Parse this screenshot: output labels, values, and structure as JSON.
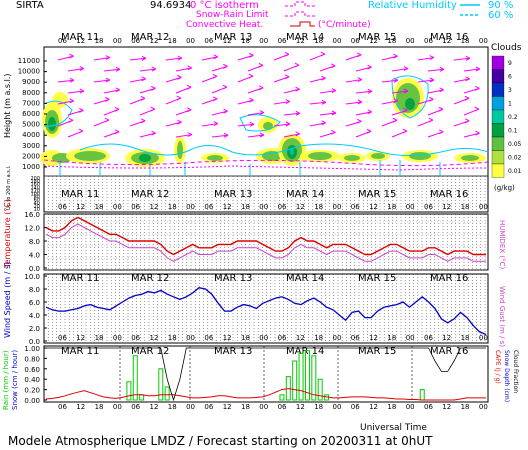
{
  "header": {
    "site": "SIRTA",
    "coords": "94.6934",
    "legend_isotherm": "0 °C isotherm",
    "legend_snow": "Snow-Rain Limit",
    "legend_conv": "Convective Heat.",
    "legend_conv_unit": "(°C/minute)",
    "legend_rh": "Relative Humidity",
    "rh_90": "90 %",
    "rh_60": "60 %"
  },
  "footer": {
    "title": "Modele Atmospherique LMDZ / Forecast starting on 20200311 at 0hUT"
  },
  "xaxis": {
    "days": [
      "MAR 11",
      "MAR 12",
      "MAR 13",
      "MAR 14",
      "MAR 15",
      "MAR 16"
    ],
    "hours": [
      "06",
      "12",
      "18",
      "00"
    ],
    "xlabel": "Universal Time"
  },
  "colors": {
    "temp": "#dd0000",
    "humidex": "#cc44cc",
    "wind": "#0000cc",
    "gust": "#cc44cc",
    "rain": "#00cc00",
    "snow": "#0000cc",
    "cape": "#dd0000",
    "cloud_frac": "#000000",
    "arrows": "#ff00ff",
    "rh": "#00ccff"
  },
  "chart_data": [
    {
      "type": "heatmap",
      "id": "cloud_panel",
      "ylabel": "Height (m a.s.l.)",
      "ylabel_lower": "Up to 200 m a.s.l.",
      "yticks_upper": [
        "11000",
        "10000",
        "9000",
        "8000",
        "7000",
        "6000",
        "5000",
        "4000",
        "3000",
        "2000",
        "1000"
      ],
      "yticks_lower": [
        "200",
        "180",
        "160",
        "140",
        "120",
        "100",
        "80",
        "60",
        "40",
        "20",
        "10"
      ],
      "colorbar_title": "Clouds",
      "colorbar_labels": [
        "9",
        "6",
        "3",
        "1",
        "0.2",
        "0.1",
        "0.05",
        "0.02",
        "0.01"
      ],
      "colorbar_colors": [
        "#a000e0",
        "#4400a0",
        "#0030c0",
        "#00a0e0",
        "#00c8a0",
        "#00a040",
        "#60c040",
        "#b0e040",
        "#ffff40"
      ],
      "colorbar_unit": "(g/kg)"
    },
    {
      "type": "line",
      "id": "temperature",
      "ylabel": "Temperature (°C)",
      "ylabel_right": "HUMIDEX (°C)",
      "yticks": [
        "16.0",
        "12.0",
        "8.0",
        "4.0",
        "0.0"
      ],
      "ylim": [
        0,
        16
      ],
      "series": [
        {
          "name": "Temperature",
          "values": [
            12,
            11,
            11,
            12,
            14,
            15,
            14,
            13,
            12,
            11,
            10,
            10,
            9,
            8,
            8,
            8,
            8,
            8,
            7,
            5,
            4,
            5,
            6,
            7,
            6,
            6,
            6,
            7,
            7,
            7,
            8,
            8,
            8,
            8,
            7,
            6,
            5,
            5,
            6,
            8,
            9,
            8,
            8,
            7,
            6,
            7,
            7,
            7,
            6,
            5,
            4,
            4,
            5,
            6,
            7,
            7,
            6,
            5,
            5,
            5,
            6,
            6,
            5,
            4,
            5,
            5,
            5,
            4,
            4,
            4
          ]
        },
        {
          "name": "HUMIDEX",
          "values": [
            10,
            9,
            9,
            10,
            12,
            13,
            12,
            11,
            10,
            9,
            8,
            8,
            7,
            6,
            6,
            6,
            6,
            6,
            5,
            3,
            2,
            3,
            4,
            5,
            4,
            4,
            4,
            5,
            5,
            5,
            6,
            6,
            6,
            6,
            5,
            4,
            3,
            3,
            4,
            6,
            7,
            6,
            6,
            5,
            4,
            5,
            5,
            5,
            4,
            3,
            2,
            2,
            3,
            4,
            5,
            5,
            4,
            3,
            3,
            3,
            4,
            4,
            3,
            2,
            3,
            3,
            3,
            2,
            2,
            2
          ]
        }
      ]
    },
    {
      "type": "line",
      "id": "wind",
      "ylabel": "Wind Speed (m / s)",
      "ylabel_right": "Wind Gust (m / s)",
      "yticks": [
        "10.0",
        "8.0",
        "6.0",
        "4.0",
        "2.0",
        "0.0"
      ],
      "ylim": [
        0,
        10
      ],
      "series": [
        {
          "name": "Wind Speed",
          "values": [
            5.2,
            4.8,
            4.6,
            4.6,
            4.8,
            5.0,
            5.4,
            5.6,
            5.2,
            5.0,
            4.8,
            5.4,
            6.0,
            6.6,
            7.0,
            7.2,
            7.6,
            7.4,
            7.8,
            7.2,
            6.8,
            6.4,
            6.8,
            7.4,
            8.2,
            8.0,
            7.2,
            5.8,
            4.6,
            4.6,
            5.2,
            5.6,
            5.4,
            5.0,
            5.8,
            6.2,
            6.6,
            6.8,
            6.4,
            5.8,
            5.6,
            6.2,
            6.6,
            6.0,
            5.2,
            4.8,
            4.0,
            3.2,
            4.4,
            4.6,
            3.6,
            3.6,
            4.6,
            5.2,
            5.4,
            5.6,
            6.0,
            5.2,
            6.0,
            6.8,
            6.0,
            5.0,
            3.4,
            2.8,
            3.4,
            4.4,
            3.6,
            2.4,
            1.4,
            1.0
          ]
        }
      ]
    },
    {
      "type": "bar",
      "id": "precip",
      "ylabel_left": "Rain (mm / hour)",
      "ylabel_left2": "Snow (cm / hour)",
      "ylabel_right": "CAPE (J / g)",
      "ylabel_right2": "Snow Depth (cm)",
      "ylabel_right3": "Cloud Fraction",
      "yticks": [
        "1.00",
        "0.80",
        "0.60",
        "0.40",
        "0.20",
        "0.00"
      ],
      "ylim": [
        0,
        1
      ],
      "series": [
        {
          "name": "Rain",
          "values": [
            0,
            0,
            0,
            0,
            0,
            0,
            0,
            0,
            0,
            0,
            0,
            0,
            0,
            0.35,
            0.85,
            0.1,
            0,
            0,
            0.6,
            0.25,
            0,
            0,
            0,
            0,
            0,
            0,
            0,
            0,
            0,
            0,
            0,
            0,
            0,
            0,
            0,
            0,
            0,
            0.1,
            0.45,
            0.75,
            0.9,
            0.95,
            0.85,
            0.4,
            0.1,
            0,
            0,
            0,
            0,
            0,
            0,
            0,
            0,
            0,
            0,
            0,
            0,
            0,
            0,
            0.2,
            0,
            0,
            0,
            0,
            0,
            0,
            0,
            0,
            0,
            0
          ]
        },
        {
          "name": "CAPE",
          "values": [
            0.02,
            0.03,
            0.05,
            0.08,
            0.12,
            0.15,
            0.18,
            0.14,
            0.1,
            0.06,
            0.04,
            0.03,
            0.05,
            0.08,
            0.1,
            0.1,
            0.08,
            0.08,
            0.1,
            0.1,
            0.1,
            0.08,
            0.06,
            0.04,
            0.04,
            0.05,
            0.06,
            0.08,
            0.08,
            0.06,
            0.04,
            0.04,
            0.04,
            0.05,
            0.06,
            0.1,
            0.15,
            0.2,
            0.22,
            0.2,
            0.18,
            0.14,
            0.1,
            0.08,
            0.06,
            0.04,
            0.04,
            0.05,
            0.06,
            0.06,
            0.06,
            0.05,
            0.04,
            0.04,
            0.03,
            0.02,
            0.02,
            0.01,
            0.01,
            0.0,
            0.0,
            0.0,
            0.0,
            0.0,
            0.0,
            0.02,
            0.04,
            0.04,
            0.04,
            0.04
          ]
        },
        {
          "name": "Cloud Fraction",
          "values": [
            1,
            1,
            1,
            1,
            1,
            1,
            1,
            1,
            1,
            1,
            1,
            1,
            1,
            1,
            1,
            1,
            1,
            1,
            1,
            0.4,
            0.0,
            0.4,
            1,
            1,
            1,
            1,
            1,
            1,
            1,
            1,
            1,
            1,
            1,
            1,
            1,
            1,
            1,
            1,
            1,
            1,
            1,
            1,
            1,
            1,
            1,
            1,
            1,
            1,
            1,
            1,
            1,
            1,
            1,
            1,
            1,
            1,
            1,
            1,
            1,
            1,
            1,
            0.75,
            0.55,
            0.55,
            0.75,
            1,
            1,
            1,
            1,
            1
          ]
        }
      ]
    }
  ]
}
